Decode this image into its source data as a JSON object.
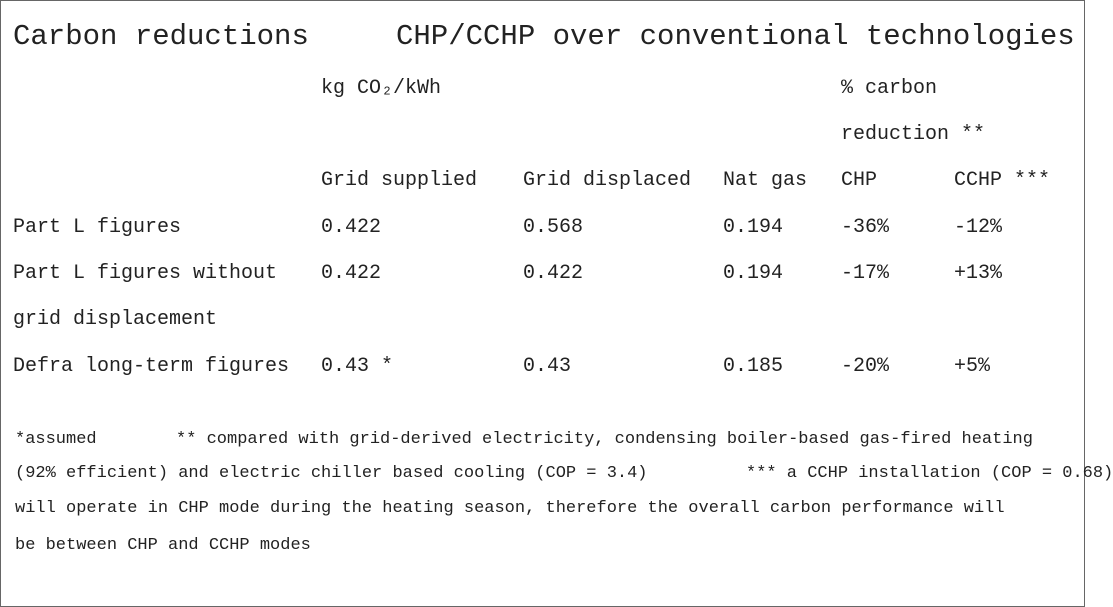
{
  "title": {
    "left": "Carbon reductions",
    "right": "CHP/CCHP over conventional technologies"
  },
  "table": {
    "group_headers": [
      "kg CO₂/kWh",
      "% carbon reduction **"
    ],
    "columns": [
      "Grid supplied",
      "Grid displaced",
      "Nat gas",
      "CHP",
      "CCHP ***"
    ],
    "rows": [
      [
        "Part L figures",
        "0.422",
        "0.568",
        "0.194",
        "-36%",
        "-12%"
      ],
      [
        "Part L figures without grid displacement",
        "0.422",
        "0.422",
        "0.194",
        "-17%",
        "+13%"
      ],
      [
        "Defra long-term figures",
        "0.43 *",
        "0.43",
        "0.185",
        "-20%",
        "+5%"
      ]
    ]
  },
  "footnotes": [
    [
      "*assumed",
      "** compared with grid-derived electricity, condensing boiler-based gas-fired heating"
    ],
    [
      "(92% efficient) and electric chiller based cooling (COP = 3.4)",
      "*** a CCHP installation (COP = 0.68)"
    ],
    [
      "will operate in CHP mode during the heating season, therefore the overall carbon performance will"
    ],
    [
      "be between CHP and CCHP modes"
    ]
  ]
}
